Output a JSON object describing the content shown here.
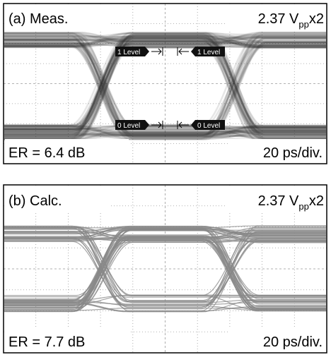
{
  "panels": [
    {
      "label": "(a) Meas.",
      "scale": {
        "value": "2.37 V",
        "subscript": "pp",
        "suffix": "x2"
      },
      "markers": [
        "1 Level",
        "1 Level",
        "0 Level",
        "0 Level"
      ],
      "er": "ER = 6.4 dB",
      "timebase": "20 ps/div."
    },
    {
      "label": "(b) Calc.",
      "scale": {
        "value": "2.37 V",
        "subscript": "pp",
        "suffix": "x2"
      },
      "er": "ER = 7.7 dB",
      "timebase": "20 ps/div."
    }
  ]
}
